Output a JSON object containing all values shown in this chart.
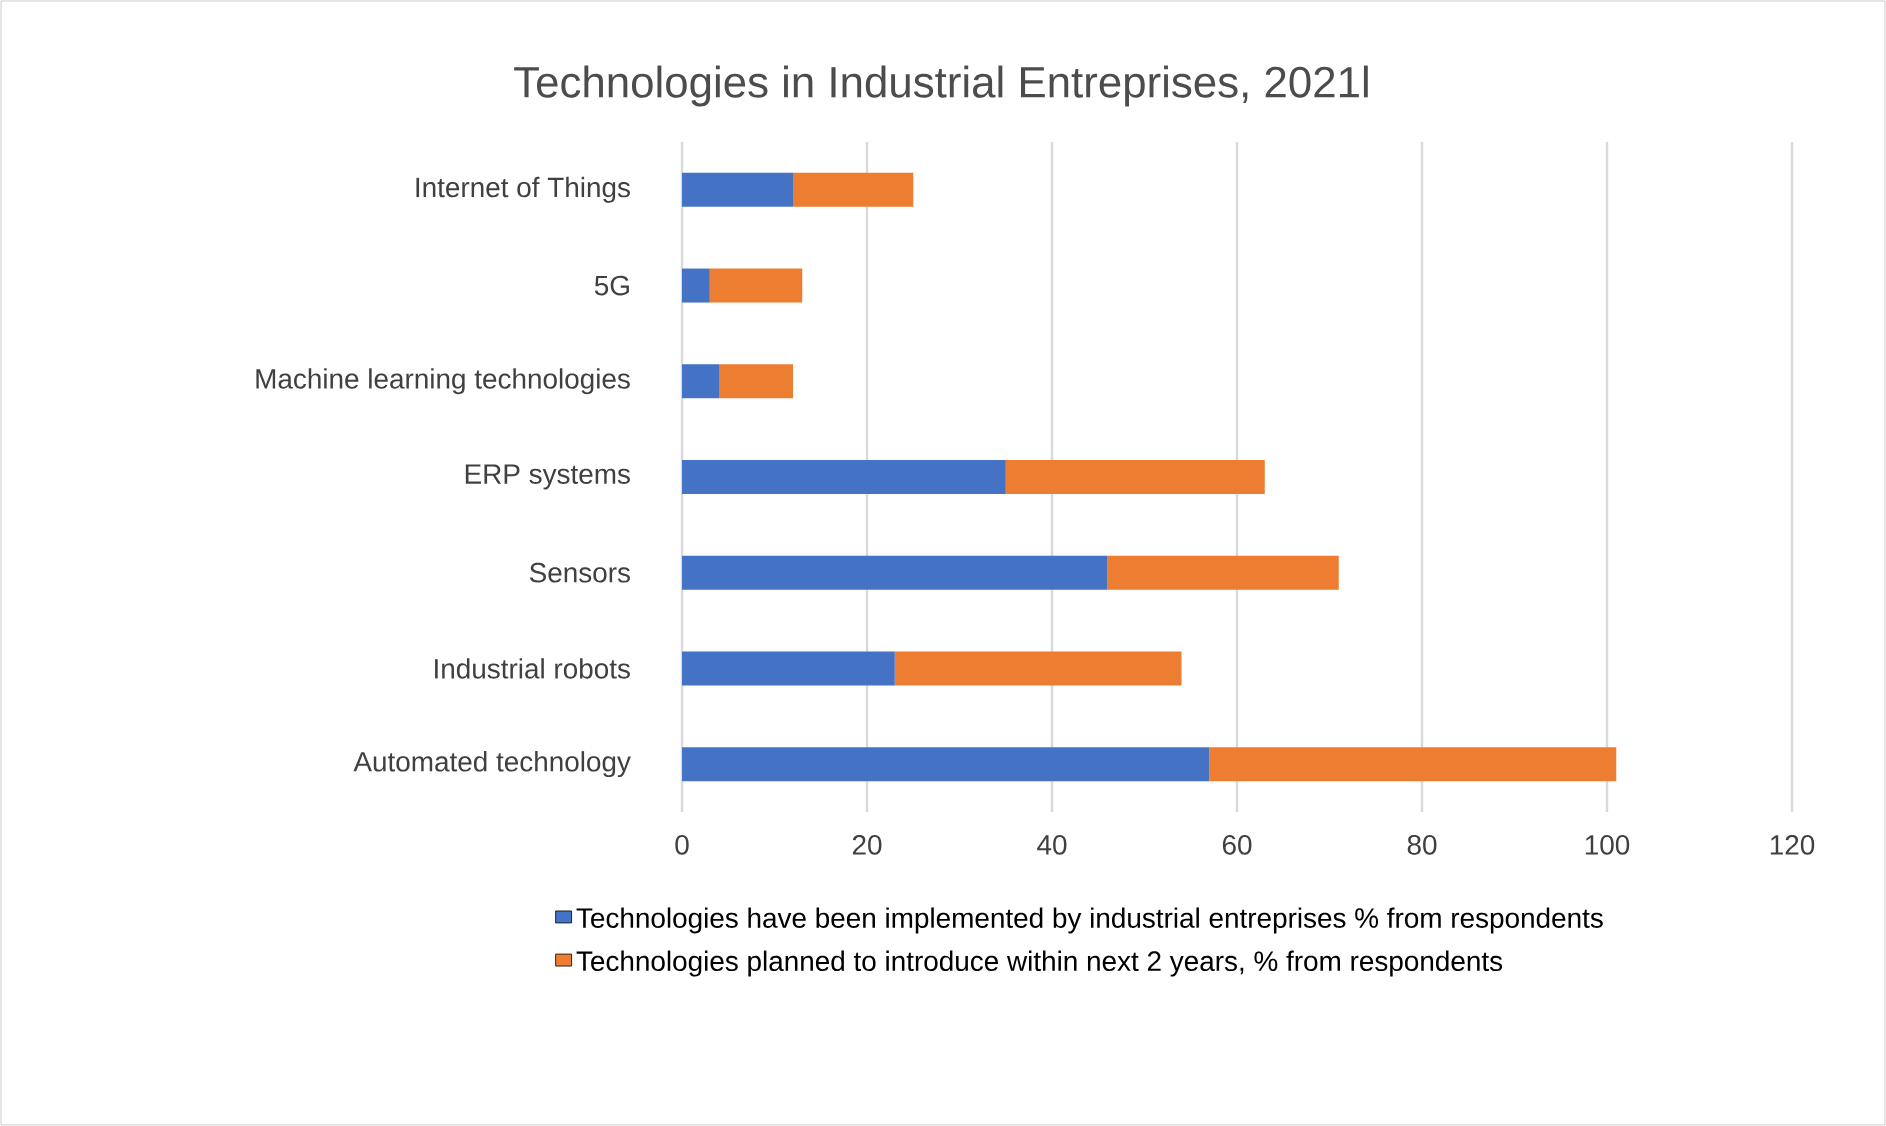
{
  "chart_data": {
    "type": "bar",
    "orientation": "horizontal",
    "stacked": true,
    "title": "Technologies in Industrial Entreprises, 2021l",
    "categories": [
      "Internet of Things",
      "5G",
      "Machine learning technologies",
      "ERP systems",
      "Sensors",
      "Industrial robots",
      "Automated technology"
    ],
    "series": [
      {
        "name": "Technologies have been implemented by industrial entreprises % from respondents",
        "color": "#4472c4",
        "values": [
          12,
          3,
          4,
          35,
          46,
          23,
          57
        ]
      },
      {
        "name": "Technologies planned to introduce within next 2 years, % from respondents",
        "color": "#ed7d31",
        "values": [
          13,
          10,
          8,
          28,
          25,
          31,
          44
        ]
      }
    ],
    "xlim": [
      0,
      120
    ],
    "xticks": [
      0,
      20,
      40,
      60,
      80,
      100,
      120
    ],
    "grid": "x",
    "legend": "bottom"
  }
}
